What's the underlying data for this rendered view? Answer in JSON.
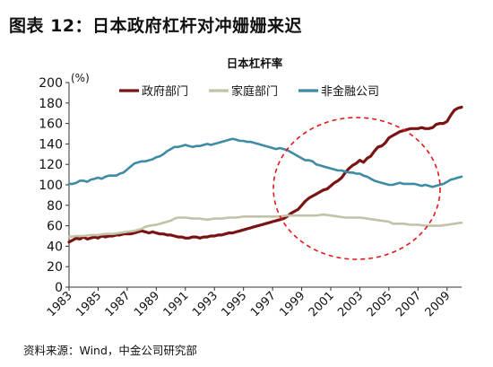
{
  "figure_title": "图表 12：日本政府杠杆对冲姗姗来迟",
  "source_note": "资料来源：Wind，中金公司研究部",
  "chart_data": {
    "type": "line",
    "title": "日本杠杆率",
    "unit_label": "(%)",
    "xlim": [
      1983,
      2010
    ],
    "ylim": [
      0,
      200
    ],
    "y_ticks": [
      0,
      20,
      40,
      60,
      80,
      100,
      120,
      140,
      160,
      180,
      200
    ],
    "x_ticks": [
      "1983",
      "1985",
      "1987",
      "1989",
      "1991",
      "1993",
      "1995",
      "1997",
      "1999",
      "2001",
      "2003",
      "2005",
      "2007",
      "2009"
    ],
    "legend_position": "top",
    "grid": false,
    "annotation": "red dashed ellipse highlighting 1997–2009",
    "series": [
      {
        "name": "政府部门",
        "color": "#7a1414",
        "points": [
          [
            1983.0,
            44
          ],
          [
            1983.25,
            46
          ],
          [
            1983.5,
            48
          ],
          [
            1983.75,
            47
          ],
          [
            1984.0,
            49
          ],
          [
            1984.25,
            47
          ],
          [
            1984.5,
            48
          ],
          [
            1984.75,
            49
          ],
          [
            1985.0,
            48
          ],
          [
            1985.25,
            50
          ],
          [
            1985.5,
            49
          ],
          [
            1985.75,
            50
          ],
          [
            1986.0,
            50
          ],
          [
            1986.25,
            51
          ],
          [
            1986.5,
            51
          ],
          [
            1986.75,
            52
          ],
          [
            1987.0,
            52
          ],
          [
            1987.25,
            52
          ],
          [
            1987.5,
            53
          ],
          [
            1987.75,
            54
          ],
          [
            1988.0,
            55
          ],
          [
            1988.25,
            54
          ],
          [
            1988.5,
            53
          ],
          [
            1988.75,
            54
          ],
          [
            1989.0,
            53
          ],
          [
            1989.25,
            52
          ],
          [
            1989.5,
            52
          ],
          [
            1989.75,
            51
          ],
          [
            1990.0,
            51
          ],
          [
            1990.25,
            50
          ],
          [
            1990.5,
            49
          ],
          [
            1990.75,
            49
          ],
          [
            1991.0,
            48
          ],
          [
            1991.25,
            48
          ],
          [
            1991.5,
            49
          ],
          [
            1991.75,
            49
          ],
          [
            1992.0,
            48
          ],
          [
            1992.25,
            49
          ],
          [
            1992.5,
            49
          ],
          [
            1992.75,
            50
          ],
          [
            1993.0,
            50
          ],
          [
            1993.25,
            51
          ],
          [
            1993.5,
            51
          ],
          [
            1993.75,
            52
          ],
          [
            1994.0,
            53
          ],
          [
            1994.25,
            53
          ],
          [
            1994.5,
            54
          ],
          [
            1994.75,
            55
          ],
          [
            1995.0,
            56
          ],
          [
            1995.25,
            57
          ],
          [
            1995.5,
            58
          ],
          [
            1995.75,
            59
          ],
          [
            1996.0,
            60
          ],
          [
            1996.25,
            61
          ],
          [
            1996.5,
            62
          ],
          [
            1996.75,
            63
          ],
          [
            1997.0,
            64
          ],
          [
            1997.25,
            65
          ],
          [
            1997.5,
            66
          ],
          [
            1997.75,
            67
          ],
          [
            1998.0,
            69
          ],
          [
            1998.25,
            72
          ],
          [
            1998.5,
            74
          ],
          [
            1998.75,
            76
          ],
          [
            1999.0,
            80
          ],
          [
            1999.25,
            84
          ],
          [
            1999.5,
            87
          ],
          [
            1999.75,
            89
          ],
          [
            2000.0,
            91
          ],
          [
            2000.25,
            93
          ],
          [
            2000.5,
            95
          ],
          [
            2000.75,
            96
          ],
          [
            2001.0,
            99
          ],
          [
            2001.25,
            102
          ],
          [
            2001.5,
            104
          ],
          [
            2001.75,
            107
          ],
          [
            2002.0,
            112
          ],
          [
            2002.25,
            116
          ],
          [
            2002.5,
            119
          ],
          [
            2002.75,
            121
          ],
          [
            2003.0,
            124
          ],
          [
            2003.25,
            122
          ],
          [
            2003.5,
            126
          ],
          [
            2003.75,
            128
          ],
          [
            2004.0,
            133
          ],
          [
            2004.25,
            137
          ],
          [
            2004.5,
            138
          ],
          [
            2004.75,
            141
          ],
          [
            2005.0,
            146
          ],
          [
            2005.25,
            148
          ],
          [
            2005.5,
            150
          ],
          [
            2005.75,
            152
          ],
          [
            2006.0,
            153
          ],
          [
            2006.25,
            154
          ],
          [
            2006.5,
            155
          ],
          [
            2006.75,
            155
          ],
          [
            2007.0,
            155
          ],
          [
            2007.25,
            156
          ],
          [
            2007.5,
            155
          ],
          [
            2007.75,
            155
          ],
          [
            2008.0,
            156
          ],
          [
            2008.25,
            159
          ],
          [
            2008.5,
            160
          ],
          [
            2008.75,
            160
          ],
          [
            2009.0,
            162
          ],
          [
            2009.25,
            168
          ],
          [
            2009.5,
            173
          ],
          [
            2009.75,
            175
          ],
          [
            2010.0,
            176
          ]
        ]
      },
      {
        "name": "家庭部门",
        "color": "#c2c2a6",
        "points": [
          [
            1983.0,
            49
          ],
          [
            1983.5,
            50
          ],
          [
            1984.0,
            50
          ],
          [
            1984.5,
            51
          ],
          [
            1985.0,
            51
          ],
          [
            1985.5,
            52
          ],
          [
            1986.0,
            52
          ],
          [
            1986.5,
            53
          ],
          [
            1987.0,
            54
          ],
          [
            1987.5,
            55
          ],
          [
            1988.0,
            57
          ],
          [
            1988.25,
            59
          ],
          [
            1988.5,
            60
          ],
          [
            1989.0,
            61
          ],
          [
            1989.5,
            63
          ],
          [
            1990.0,
            65
          ],
          [
            1990.25,
            67
          ],
          [
            1990.5,
            68
          ],
          [
            1991.0,
            68
          ],
          [
            1991.5,
            67
          ],
          [
            1992.0,
            67
          ],
          [
            1992.5,
            66
          ],
          [
            1993.0,
            67
          ],
          [
            1993.5,
            67
          ],
          [
            1994.0,
            68
          ],
          [
            1994.5,
            68
          ],
          [
            1995.0,
            69
          ],
          [
            1995.5,
            69
          ],
          [
            1996.0,
            69
          ],
          [
            1996.5,
            69
          ],
          [
            1997.0,
            69
          ],
          [
            1997.5,
            69
          ],
          [
            1998.0,
            70
          ],
          [
            1998.5,
            70
          ],
          [
            1999.0,
            70
          ],
          [
            1999.5,
            70
          ],
          [
            2000.0,
            70
          ],
          [
            2000.5,
            71
          ],
          [
            2001.0,
            70
          ],
          [
            2001.5,
            69
          ],
          [
            2002.0,
            68
          ],
          [
            2002.5,
            68
          ],
          [
            2003.0,
            68
          ],
          [
            2003.5,
            67
          ],
          [
            2004.0,
            66
          ],
          [
            2004.5,
            65
          ],
          [
            2005.0,
            64
          ],
          [
            2005.25,
            62
          ],
          [
            2005.5,
            62
          ],
          [
            2006.0,
            62
          ],
          [
            2006.5,
            61
          ],
          [
            2007.0,
            61
          ],
          [
            2007.5,
            60
          ],
          [
            2008.0,
            60
          ],
          [
            2008.5,
            60
          ],
          [
            2009.0,
            61
          ],
          [
            2009.5,
            62
          ],
          [
            2010.0,
            63
          ]
        ]
      },
      {
        "name": "非金融公司",
        "color": "#3d8ba5",
        "points": [
          [
            1983.0,
            101
          ],
          [
            1983.25,
            101
          ],
          [
            1983.5,
            102
          ],
          [
            1983.75,
            104
          ],
          [
            1984.0,
            104
          ],
          [
            1984.25,
            103
          ],
          [
            1984.5,
            105
          ],
          [
            1984.75,
            106
          ],
          [
            1985.0,
            107
          ],
          [
            1985.25,
            106
          ],
          [
            1985.5,
            108
          ],
          [
            1985.75,
            109
          ],
          [
            1986.0,
            109
          ],
          [
            1986.25,
            109
          ],
          [
            1986.5,
            111
          ],
          [
            1986.75,
            112
          ],
          [
            1987.0,
            115
          ],
          [
            1987.25,
            118
          ],
          [
            1987.5,
            121
          ],
          [
            1987.75,
            122
          ],
          [
            1988.0,
            123
          ],
          [
            1988.25,
            123
          ],
          [
            1988.5,
            124
          ],
          [
            1988.75,
            125
          ],
          [
            1989.0,
            127
          ],
          [
            1989.25,
            128
          ],
          [
            1989.5,
            130
          ],
          [
            1989.75,
            133
          ],
          [
            1990.0,
            135
          ],
          [
            1990.25,
            137
          ],
          [
            1990.5,
            137
          ],
          [
            1990.75,
            138
          ],
          [
            1991.0,
            139
          ],
          [
            1991.25,
            138
          ],
          [
            1991.5,
            137
          ],
          [
            1991.75,
            138
          ],
          [
            1992.0,
            138
          ],
          [
            1992.25,
            139
          ],
          [
            1992.5,
            140
          ],
          [
            1992.75,
            139
          ],
          [
            1993.0,
            140
          ],
          [
            1993.25,
            141
          ],
          [
            1993.5,
            142
          ],
          [
            1993.75,
            143
          ],
          [
            1994.0,
            144
          ],
          [
            1994.25,
            145
          ],
          [
            1994.5,
            144
          ],
          [
            1994.75,
            143
          ],
          [
            1995.0,
            143
          ],
          [
            1995.25,
            142
          ],
          [
            1995.5,
            142
          ],
          [
            1995.75,
            141
          ],
          [
            1996.0,
            140
          ],
          [
            1996.25,
            139
          ],
          [
            1996.5,
            138
          ],
          [
            1996.75,
            137
          ],
          [
            1997.0,
            136
          ],
          [
            1997.25,
            135
          ],
          [
            1997.5,
            136
          ],
          [
            1997.75,
            135
          ],
          [
            1998.0,
            134
          ],
          [
            1998.25,
            132
          ],
          [
            1998.5,
            130
          ],
          [
            1998.75,
            128
          ],
          [
            1999.0,
            126
          ],
          [
            1999.25,
            124
          ],
          [
            1999.5,
            124
          ],
          [
            1999.75,
            123
          ],
          [
            2000.0,
            120
          ],
          [
            2000.25,
            119
          ],
          [
            2000.5,
            118
          ],
          [
            2000.75,
            117
          ],
          [
            2001.0,
            116
          ],
          [
            2001.25,
            115
          ],
          [
            2001.5,
            114
          ],
          [
            2001.75,
            114
          ],
          [
            2002.0,
            113
          ],
          [
            2002.25,
            112
          ],
          [
            2002.5,
            112
          ],
          [
            2002.75,
            111
          ],
          [
            2003.0,
            111
          ],
          [
            2003.25,
            109
          ],
          [
            2003.5,
            108
          ],
          [
            2003.75,
            106
          ],
          [
            2004.0,
            104
          ],
          [
            2004.25,
            103
          ],
          [
            2004.5,
            102
          ],
          [
            2004.75,
            101
          ],
          [
            2005.0,
            100
          ],
          [
            2005.25,
            100
          ],
          [
            2005.5,
            101
          ],
          [
            2005.75,
            102
          ],
          [
            2006.0,
            101
          ],
          [
            2006.25,
            101
          ],
          [
            2006.5,
            101
          ],
          [
            2006.75,
            101
          ],
          [
            2007.0,
            100
          ],
          [
            2007.25,
            99
          ],
          [
            2007.5,
            100
          ],
          [
            2007.75,
            99
          ],
          [
            2008.0,
            98
          ],
          [
            2008.25,
            99
          ],
          [
            2008.5,
            100
          ],
          [
            2008.75,
            101
          ],
          [
            2009.0,
            103
          ],
          [
            2009.25,
            105
          ],
          [
            2009.5,
            106
          ],
          [
            2009.75,
            107
          ],
          [
            2010.0,
            108
          ]
        ]
      }
    ]
  }
}
